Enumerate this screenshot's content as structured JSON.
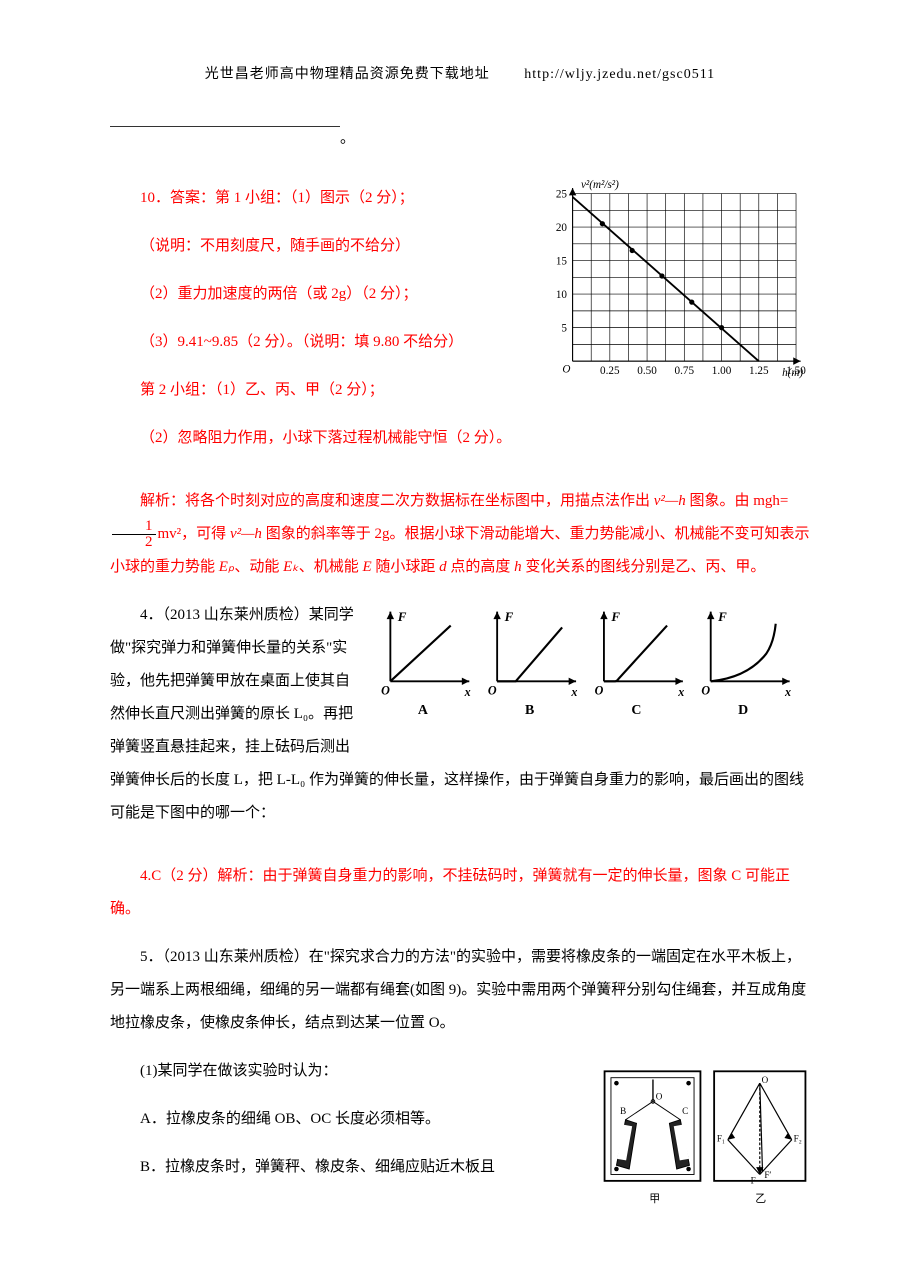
{
  "header": {
    "text": "光世昌老师高中物理精品资源免费下载地址",
    "url": "http://wljy.jzedu.net/gsc0511"
  },
  "colors": {
    "text": "#000000",
    "answer": "#ff0000",
    "background": "#ffffff"
  },
  "blank_suffix": "。",
  "answer10": {
    "line1": "10．答案：第 1 小组：（1）图示（2 分）；",
    "line2": "（说明：不用刻度尺，随手画的不给分）",
    "line3": "（2）重力加速度的两倍（或 2g）（2 分）；",
    "line4": "（3）9.41~9.85（2 分）。（说明：填 9.80 不给分）",
    "line5": "第 2 小组：（1）乙、丙、甲（2 分）；",
    "line6": "（2）忽略阻力作用，小球下落过程机械能守恒（2 分）。"
  },
  "explain10": "解析：将各个时刻对应的高度和速度二次方数据标在坐标图中，用描点法作出 v²—h 图象。由 mgh=½mv²，可得 v²—h 图象的斜率等于 2g。根据小球下滑动能增大、重力势能减小、机械能不变可知表示小球的重力势能 Eₚ、动能 Eₖ、机械能 E 随小球距 d 点的高度 h 变化关系的图线分别是乙、丙、甲。",
  "explain10_pre": "解析：将各个时刻对应的高度和速度二次方数据标在坐标图中，用描点法作出 ",
  "explain10_v2h": "v²—h",
  "explain10_mid1": " 图象。由 mgh=",
  "explain10_mv2": "mv²",
  "explain10_mid2": "，可得 ",
  "explain10_mid3": " 图象的斜率等于 2g。根据小球下滑动能增大、重力势能减小、机械能不变可知表示小球的重力势能 ",
  "explain10_Ep": "Eₚ",
  "explain10_mid4": "、动能 ",
  "explain10_Ek": "Eₖ",
  "explain10_mid5": "、机械能 ",
  "explain10_E": "E",
  "explain10_mid6": " 随小球距 ",
  "explain10_d": "d",
  "explain10_mid7": " 点的高度 ",
  "explain10_h": "h",
  "explain10_mid8": " 变化关系的图线分别是乙、丙、甲。",
  "graph1": {
    "ylabel": "v²(m²/s²)",
    "xlabel": "h(m)",
    "origin": "O",
    "xticks": [
      "0.25",
      "0.50",
      "0.75",
      "1.00",
      "1.25",
      "1.50"
    ],
    "yticks": [
      "5",
      "10",
      "15",
      "20",
      "25"
    ],
    "xlim": [
      0,
      1.5
    ],
    "ylim": [
      0,
      25
    ],
    "grid_step_x": 0.125,
    "grid_step_y": 2.5,
    "line": {
      "x1": 0,
      "y1": 24.5,
      "x2": 1.25,
      "y2": 0
    },
    "points": [
      {
        "x": 0.2,
        "y": 20.5
      },
      {
        "x": 0.4,
        "y": 16.5
      },
      {
        "x": 0.6,
        "y": 12.7
      },
      {
        "x": 0.8,
        "y": 8.8
      },
      {
        "x": 1.0,
        "y": 5.0
      }
    ]
  },
  "q4": {
    "stem_pre": "4．（2013 山东莱州质检）某同学做\"探究弹力和弹簧伸长量的关系\"实验，他先把弹簧甲放在桌面上使其自然伸长",
    "stem_mid": "直尺测出弹簧的原长 L₀。再把弹簧竖直悬挂起来，挂上砝码后测出弹簧伸长后的长度 L，把 L-L₀ 作为弹簧的伸长量，这样操作，由于弹簧自身重力的影响，最后画出的图线可能是下图中的哪一个：",
    "ans": "4.C（2 分）解析：由于弹簧自身重力的影响，不挂砝码时，弹簧就有一定的伸长量，图象 C 可能正确。",
    "options": [
      "A",
      "B",
      "C",
      "D"
    ],
    "axis_y": "F",
    "axis_x": "x",
    "axis_o": "O"
  },
  "q5": {
    "stem": "5．（2013 山东莱州质检）在\"探究求合力的方法\"的实验中，需要将橡皮条的一端固定在水平木板上，另一端系上两根细绳，细绳的另一端都有绳套(如图 9)。实验中需用两个弹簧秤分别勾住绳套，并互成角度地拉橡皮条，使橡皮条伸长，结点到达某一位置 O。",
    "item1_pre": "(1)某同学在做该实验时认为：",
    "A": "A．拉橡皮条的细绳 OB、OC 长度必须相等。",
    "B": "B．拉橡皮条时，弹簧秤、橡皮条、细绳应贴近木板且",
    "fig_labels": {
      "left": "甲",
      "right": "乙",
      "O": "O",
      "B": "B",
      "C": "C",
      "F1": "F₁",
      "F2": "F₂",
      "F": "F",
      "Fp": "F′"
    }
  }
}
